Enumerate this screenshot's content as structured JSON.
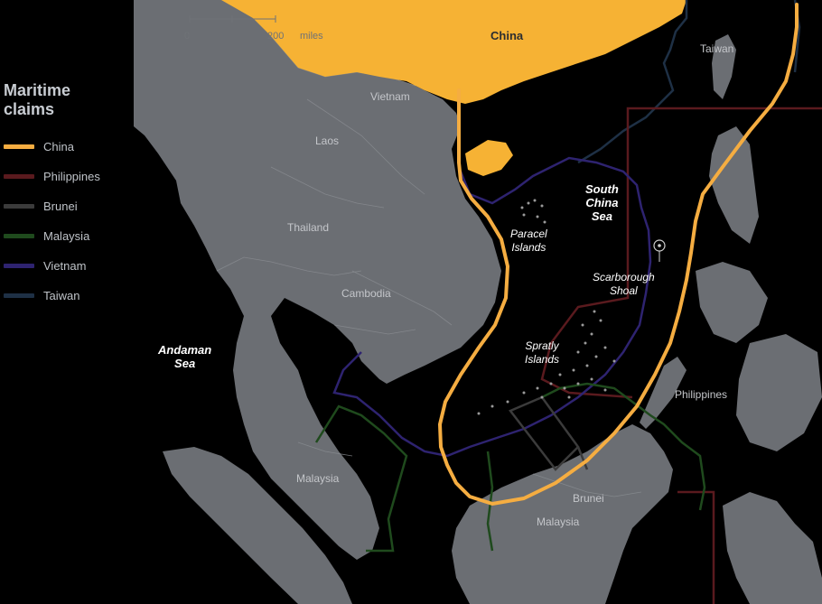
{
  "legend": {
    "title": "Maritime claims",
    "items": [
      {
        "label": "China",
        "color": "#f5ad41"
      },
      {
        "label": "Philippines",
        "color": "#5a1a1e"
      },
      {
        "label": "Brunei",
        "color": "#3b3b3b"
      },
      {
        "label": "Malaysia",
        "color": "#1f4a1d"
      },
      {
        "label": "Vietnam",
        "color": "#2e2370"
      },
      {
        "label": "Taiwan",
        "color": "#1e3045"
      }
    ]
  },
  "scale": {
    "start": "0",
    "end": "200",
    "unit": "miles"
  },
  "places": {
    "china": "China",
    "taiwan": "Taiwan",
    "vietnam": "Vietnam",
    "laos": "Laos",
    "thailand": "Thailand",
    "cambodia": "Cambodia",
    "malaysia_west": "Malaysia",
    "malaysia_east": "Malaysia",
    "brunei": "Brunei",
    "philippines": "Philippines"
  },
  "seas": {
    "south_china_sea": [
      "South",
      "China",
      "Sea"
    ],
    "andaman_sea": [
      "Andaman",
      "Sea"
    ]
  },
  "features": {
    "paracel": [
      "Paracel",
      "Islands"
    ],
    "spratly": [
      "Spratly",
      "Islands"
    ],
    "scarborough": [
      "Scarborough",
      "Shoal"
    ]
  },
  "colors": {
    "land": "#6b6e73",
    "water": "#000000",
    "china_land": "#f6b234",
    "border": "#8a8d92"
  }
}
